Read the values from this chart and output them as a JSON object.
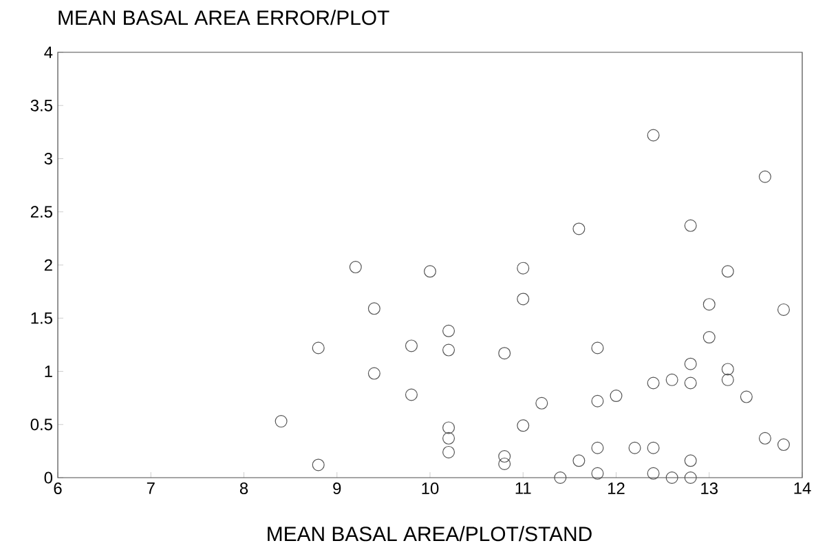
{
  "chart_data": {
    "type": "scatter",
    "title": "MEAN BASAL AREA ERROR/PLOT",
    "xlabel": "MEAN BASAL AREA/PLOT/STAND",
    "xlim": [
      6,
      14
    ],
    "ylim": [
      0,
      4
    ],
    "xticks": [
      6,
      7,
      8,
      9,
      10,
      11,
      12,
      13,
      14
    ],
    "yticks": [
      0,
      0.5,
      1,
      1.5,
      2,
      2.5,
      3,
      3.5,
      4
    ],
    "marker": "circle",
    "grid": false,
    "series": [
      {
        "color": "#555555",
        "x": [
          12.4,
          13.6,
          11.6,
          12.8,
          10.0,
          11.0,
          13.2,
          9.2,
          9.4,
          8.8,
          9.4,
          8.4,
          8.8,
          9.8,
          9.8,
          11.0,
          13.0,
          13.8,
          10.2,
          10.2,
          10.8,
          11.8,
          13.0,
          12.8,
          13.2,
          13.2,
          12.6,
          12.4,
          12.8,
          13.4,
          11.2,
          11.8,
          12.0,
          11.0,
          10.2,
          10.2,
          10.2,
          10.8,
          10.8,
          13.6,
          13.8,
          11.8,
          12.2,
          12.4,
          11.6,
          12.8,
          11.4,
          11.8,
          12.4,
          12.6,
          12.8
        ],
        "values": [
          3.22,
          2.83,
          2.34,
          2.37,
          1.94,
          1.97,
          1.94,
          1.98,
          1.59,
          1.22,
          0.98,
          0.53,
          0.12,
          1.24,
          0.78,
          1.68,
          1.63,
          1.58,
          1.38,
          1.2,
          1.17,
          1.22,
          1.32,
          1.07,
          1.02,
          0.92,
          0.92,
          0.89,
          0.89,
          0.76,
          0.7,
          0.72,
          0.77,
          0.49,
          0.47,
          0.37,
          0.24,
          0.2,
          0.13,
          0.37,
          0.31,
          0.28,
          0.28,
          0.28,
          0.16,
          0.16,
          0.0,
          0.04,
          0.04,
          0.0,
          0.0
        ]
      }
    ]
  }
}
